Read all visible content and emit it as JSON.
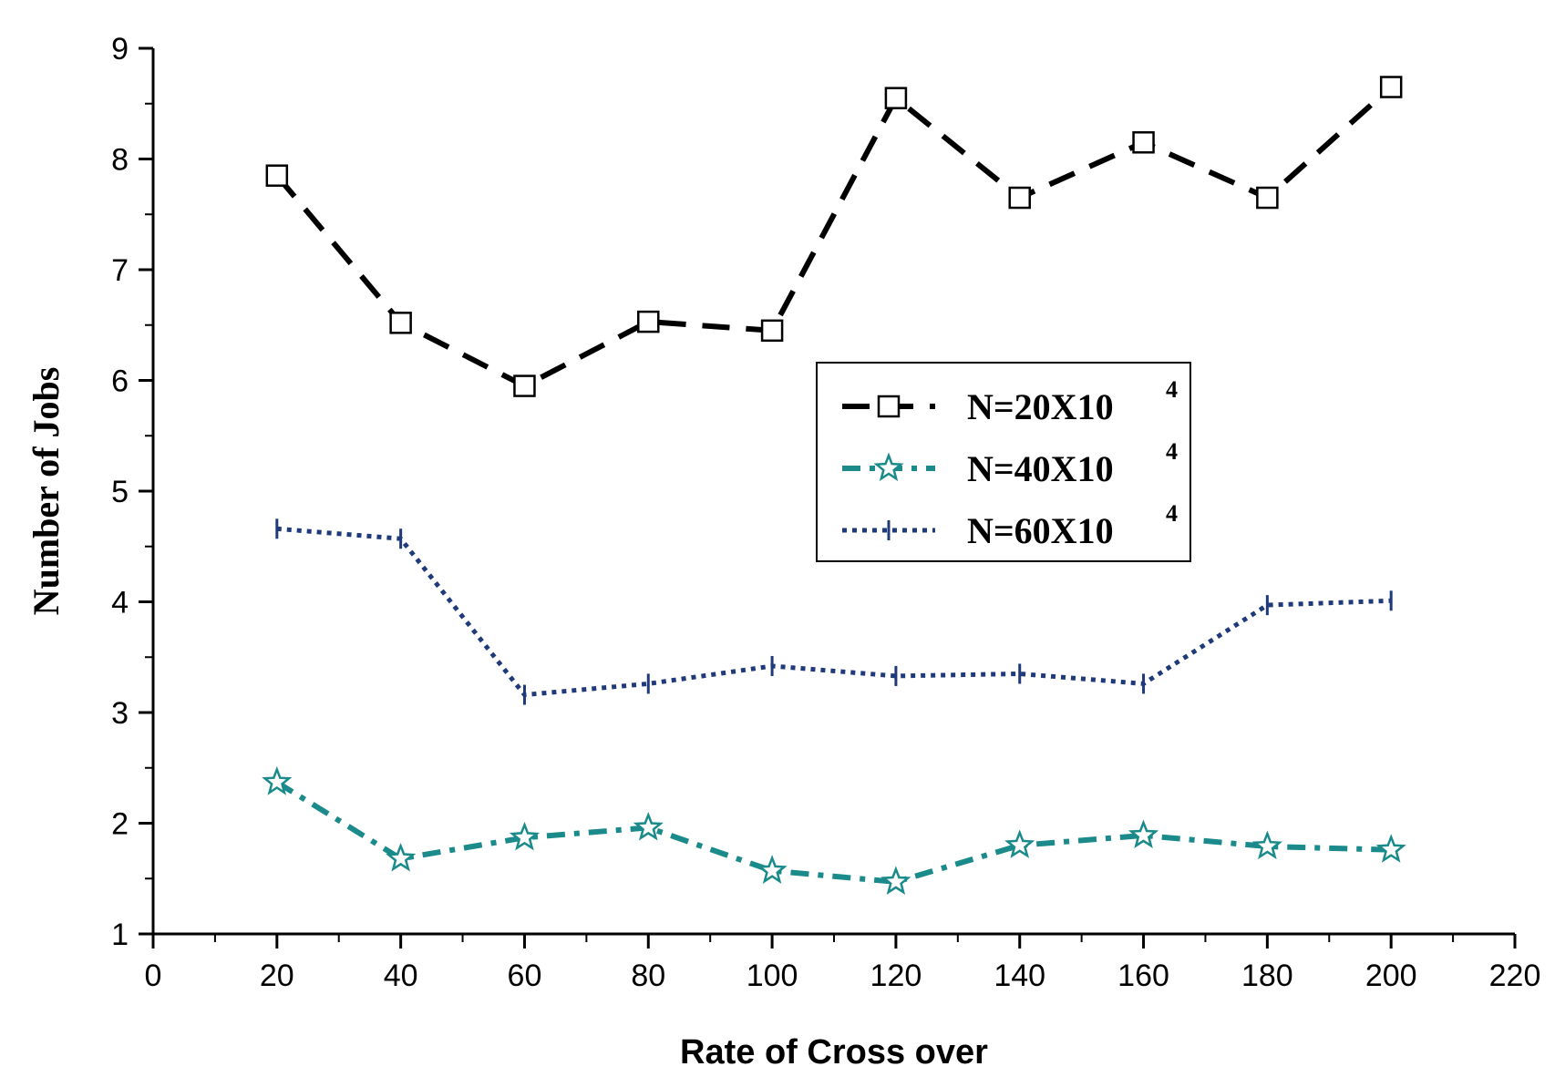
{
  "chart_data": {
    "type": "line",
    "title": "",
    "xlabel": "Rate of Cross over",
    "ylabel": "Number of Jobs",
    "xlim": [
      0,
      220
    ],
    "ylim": [
      1,
      9
    ],
    "xticks": [
      0,
      20,
      40,
      60,
      80,
      100,
      120,
      140,
      160,
      180,
      200,
      220
    ],
    "yticks": [
      1,
      2,
      3,
      4,
      5,
      6,
      7,
      8,
      9
    ],
    "x": [
      20,
      40,
      60,
      80,
      100,
      120,
      140,
      160,
      180,
      200
    ],
    "legend_position": "center-right",
    "series": [
      {
        "name": "N=20X10",
        "superscript": "4",
        "color": "#000000",
        "line_style": "dashed",
        "marker": "square",
        "values": [
          7.85,
          6.52,
          5.95,
          6.53,
          6.45,
          8.55,
          7.65,
          8.15,
          7.65,
          8.65
        ]
      },
      {
        "name": "N=40X10",
        "superscript": "4",
        "color": "#1a8a8a",
        "line_style": "dash-dot",
        "marker": "star",
        "values": [
          2.37,
          1.68,
          1.87,
          1.96,
          1.57,
          1.47,
          1.8,
          1.89,
          1.79,
          1.76
        ]
      },
      {
        "name": "N=60X10",
        "superscript": "4",
        "color": "#1f3a7a",
        "line_style": "dotted",
        "marker": "vertical-bar",
        "values": [
          4.66,
          4.57,
          3.16,
          3.26,
          3.42,
          3.33,
          3.35,
          3.26,
          3.97,
          4.01
        ]
      }
    ]
  }
}
